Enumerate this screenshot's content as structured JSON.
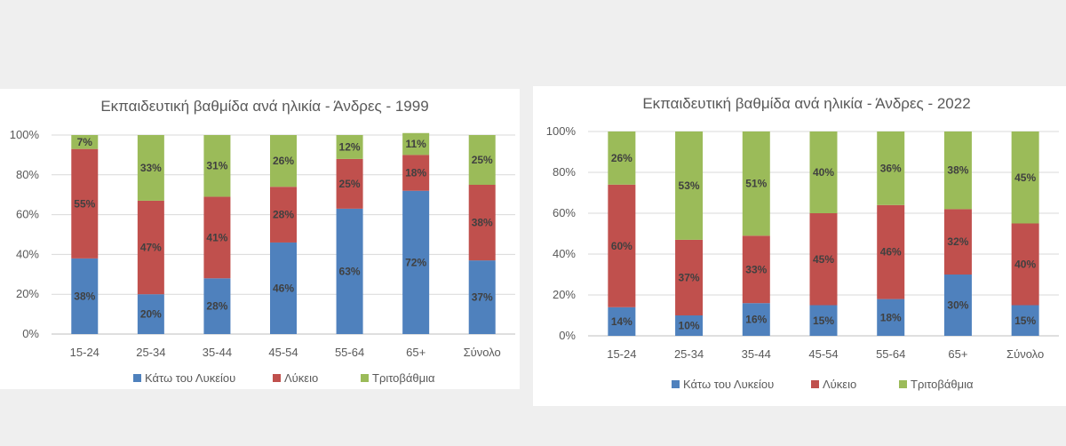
{
  "chart_data": [
    {
      "type": "bar",
      "stacked": true,
      "title": "Εκπαιδευτική βαθμίδα ανά ηλικία - Άνδρες - 1999",
      "categories": [
        "15-24",
        "25-34",
        "35-44",
        "45-54",
        "55-64",
        "65+",
        "Σύνολο"
      ],
      "ylim": [
        0,
        100
      ],
      "yticks": [
        "0%",
        "20%",
        "40%",
        "60%",
        "80%",
        "100%"
      ],
      "legend_position": "bottom",
      "series": [
        {
          "name": "Κάτω του Λυκείου",
          "color": "#4f81bd",
          "values": [
            38,
            20,
            28,
            46,
            63,
            72,
            37
          ],
          "labels": [
            "38%",
            "20%",
            "28%",
            "46%",
            "63%",
            "72%",
            "37%"
          ]
        },
        {
          "name": "Λύκειο",
          "color": "#c0504d",
          "values": [
            55,
            47,
            41,
            28,
            25,
            18,
            38
          ],
          "labels": [
            "55%",
            "47%",
            "41%",
            "28%",
            "25%",
            "18%",
            "38%"
          ]
        },
        {
          "name": "Τριτοβάθμια",
          "color": "#9bbb59",
          "values": [
            7,
            33,
            31,
            26,
            12,
            11,
            25
          ],
          "labels": [
            "7%",
            "33%",
            "31%",
            "26%",
            "12%",
            "11%",
            "25%"
          ]
        }
      ]
    },
    {
      "type": "bar",
      "stacked": true,
      "title": "Εκπαιδευτική βαθμίδα ανά ηλικία - Άνδρες - 2022",
      "categories": [
        "15-24",
        "25-34",
        "35-44",
        "45-54",
        "55-64",
        "65+",
        "Σύνολο"
      ],
      "ylim": [
        0,
        100
      ],
      "yticks": [
        "0%",
        "20%",
        "40%",
        "60%",
        "80%",
        "100%"
      ],
      "legend_position": "bottom",
      "series": [
        {
          "name": "Κάτω του Λυκείου",
          "color": "#4f81bd",
          "values": [
            14,
            10,
            16,
            15,
            18,
            30,
            15
          ],
          "labels": [
            "14%",
            "10%",
            "16%",
            "15%",
            "18%",
            "30%",
            "15%"
          ]
        },
        {
          "name": "Λύκειο",
          "color": "#c0504d",
          "values": [
            60,
            37,
            33,
            45,
            46,
            32,
            40
          ],
          "labels": [
            "60%",
            "37%",
            "33%",
            "45%",
            "46%",
            "32%",
            "40%"
          ]
        },
        {
          "name": "Τριτοβάθμια",
          "color": "#9bbb59",
          "values": [
            26,
            53,
            51,
            40,
            36,
            38,
            45
          ],
          "labels": [
            "26%",
            "53%",
            "51%",
            "40%",
            "36%",
            "38%",
            "45%"
          ]
        }
      ]
    }
  ]
}
